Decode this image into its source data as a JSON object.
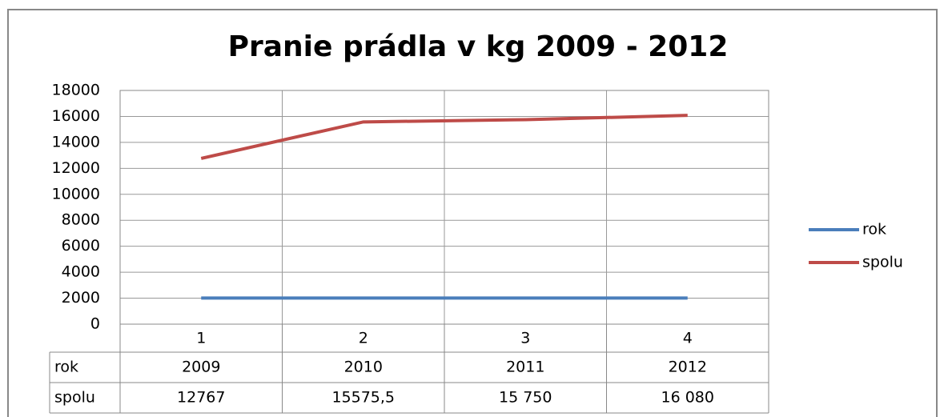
{
  "chart_data": {
    "type": "line",
    "title": "Pranie prádla v kg 2009 - 2012",
    "categories": [
      "1",
      "2",
      "3",
      "4"
    ],
    "series": [
      {
        "name": "rok",
        "color": "#4a7ebb",
        "values": [
          2009,
          2010,
          2011,
          2012
        ]
      },
      {
        "name": "spolu",
        "color": "#be4b48",
        "values": [
          12767,
          15575.5,
          15750,
          16080
        ],
        "value_labels": [
          "12767",
          "15575,5",
          "15 750",
          "16 080"
        ]
      }
    ],
    "ylim": [
      0,
      18000
    ],
    "yticks": [
      0,
      2000,
      4000,
      6000,
      8000,
      10000,
      12000,
      14000,
      16000,
      18000
    ],
    "grid": true,
    "legend": "right",
    "data_table": true
  }
}
